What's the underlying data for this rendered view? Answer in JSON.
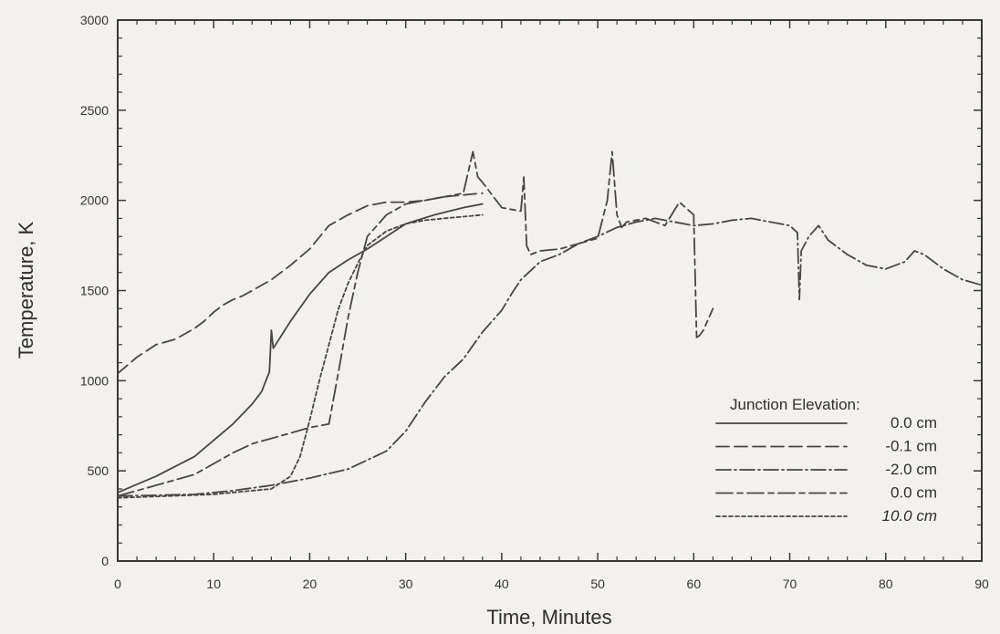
{
  "chart_data": {
    "type": "line",
    "title": "",
    "xlabel": "Time, Minutes",
    "ylabel": "Temperature, K",
    "xlim": [
      0,
      90
    ],
    "ylim": [
      0,
      3000
    ],
    "x_ticks": [
      0,
      10,
      20,
      30,
      40,
      50,
      60,
      70,
      80,
      90
    ],
    "x_tick_labels": [
      "0",
      "10",
      "20",
      "30",
      "40",
      "50",
      "60",
      "70",
      "80",
      "90"
    ],
    "y_ticks": [
      0,
      500,
      1000,
      1500,
      2000,
      2500,
      3000
    ],
    "y_tick_labels": [
      "0",
      "500",
      "1000",
      "1500",
      "2000",
      "2500",
      "3000"
    ],
    "grid": false,
    "legend": {
      "title": "Junction Elevation:",
      "placement": "bottom-right"
    },
    "series": [
      {
        "name": "0.0 cm",
        "dash": "solid",
        "x": [
          0,
          4,
          8,
          12,
          14,
          15,
          15.8,
          16.0,
          16.2,
          18,
          20,
          22,
          24,
          26,
          28,
          30,
          33,
          36,
          38
        ],
        "y": [
          380,
          470,
          580,
          760,
          870,
          940,
          1050,
          1280,
          1180,
          1330,
          1480,
          1600,
          1670,
          1730,
          1800,
          1870,
          1920,
          1960,
          1980
        ]
      },
      {
        "name": "-0.1 cm",
        "dash": "long-dash",
        "x": [
          0,
          2,
          4,
          6,
          8,
          9,
          10,
          11,
          12,
          13,
          14,
          16,
          18,
          20,
          22,
          24,
          26,
          28,
          30,
          32,
          34,
          36,
          38
        ],
        "y": [
          1040,
          1130,
          1200,
          1230,
          1290,
          1330,
          1380,
          1420,
          1450,
          1470,
          1500,
          1560,
          1640,
          1730,
          1860,
          1920,
          1970,
          1990,
          1990,
          2000,
          2020,
          2030,
          2040
        ]
      },
      {
        "name": "-2.0 cm",
        "dash": "dash-dot",
        "x": [
          0,
          8,
          12,
          16,
          20,
          24,
          28,
          30,
          32,
          34,
          36,
          38,
          39,
          40,
          41,
          42,
          43,
          44,
          46,
          48,
          50,
          52,
          54,
          56,
          58,
          60,
          62,
          64,
          66,
          68,
          70,
          70.8,
          71.0,
          71.2,
          72,
          73,
          74,
          76,
          78,
          80,
          82,
          83,
          84,
          86,
          88,
          90
        ],
        "y": [
          360,
          370,
          390,
          420,
          460,
          510,
          610,
          720,
          880,
          1020,
          1120,
          1270,
          1330,
          1390,
          1480,
          1560,
          1610,
          1660,
          1700,
          1760,
          1800,
          1850,
          1880,
          1900,
          1880,
          1860,
          1870,
          1890,
          1900,
          1880,
          1860,
          1820,
          1450,
          1720,
          1800,
          1860,
          1780,
          1700,
          1640,
          1620,
          1660,
          1720,
          1700,
          1620,
          1560,
          1530
        ]
      },
      {
        "name": "0.0 cm",
        "dash": "long-dash-short",
        "x": [
          0,
          8,
          12,
          14,
          16,
          18,
          20,
          22,
          23,
          24,
          25,
          26,
          28,
          30,
          33,
          36,
          37,
          37.5,
          38,
          40,
          42,
          42.3,
          42.6,
          43,
          44,
          46,
          48,
          50,
          51,
          51.5,
          52,
          52.5,
          53,
          55,
          57,
          58.5,
          60,
          60.3,
          60.6,
          61,
          62
        ],
        "y": [
          360,
          480,
          600,
          650,
          680,
          710,
          740,
          760,
          1050,
          1350,
          1600,
          1800,
          1920,
          1980,
          2010,
          2040,
          2270,
          2130,
          2100,
          1960,
          1940,
          2130,
          1750,
          1700,
          1720,
          1730,
          1760,
          1790,
          2000,
          2270,
          1920,
          1850,
          1880,
          1900,
          1860,
          1990,
          1920,
          1240,
          1250,
          1280,
          1400
        ]
      },
      {
        "name": "10.0 cm",
        "dash": "short-dash",
        "x": [
          0,
          10,
          16,
          18,
          19,
          20,
          21,
          22,
          23,
          24,
          25,
          26,
          28,
          30,
          32,
          34,
          36,
          38
        ],
        "y": [
          350,
          370,
          400,
          470,
          580,
          780,
          1000,
          1200,
          1400,
          1540,
          1650,
          1750,
          1830,
          1870,
          1890,
          1900,
          1910,
          1920
        ]
      }
    ],
    "legend_labels": [
      "0.0 cm",
      "-0.1 cm",
      "-2.0 cm",
      "0.0 cm",
      "10.0 cm"
    ]
  }
}
